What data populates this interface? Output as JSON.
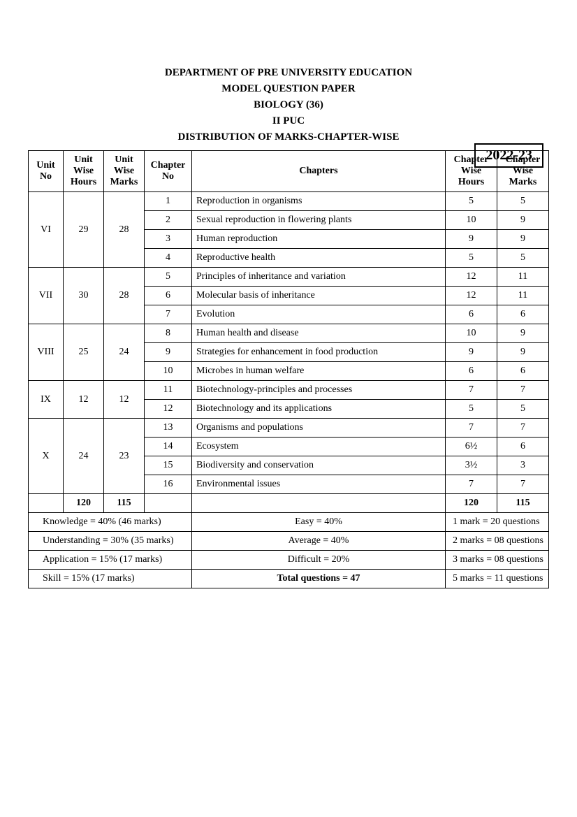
{
  "header": {
    "line1": "DEPARTMENT OF PRE UNIVERSITY EDUCATION",
    "line2": "MODEL QUESTION PAPER",
    "line3": "BIOLOGY (36)",
    "line4": "II PUC",
    "line5": "DISTRIBUTION OF MARKS-CHAPTER-WISE",
    "year": "2022-23"
  },
  "columns": {
    "unit_no": "Unit No",
    "unit_hours": "Unit Wise Hours",
    "unit_marks": "Unit Wise Marks",
    "chapter_no": "Chapter No",
    "chapters": "Chapters",
    "chapter_hours": "Chapter Wise Hours",
    "chapter_marks": "Chapter Wise Marks"
  },
  "units": [
    {
      "no": "VI",
      "hours": "29",
      "marks": "28",
      "chapters": [
        {
          "no": "1",
          "name": "Reproduction in organisms",
          "hours": "5",
          "marks": "5"
        },
        {
          "no": "2",
          "name": "Sexual reproduction in flowering plants",
          "hours": "10",
          "marks": "9"
        },
        {
          "no": "3",
          "name": "Human reproduction",
          "hours": "9",
          "marks": "9"
        },
        {
          "no": "4",
          "name": "Reproductive health",
          "hours": "5",
          "marks": "5"
        }
      ]
    },
    {
      "no": "VII",
      "hours": "30",
      "marks": "28",
      "chapters": [
        {
          "no": "5",
          "name": "Principles of inheritance and variation",
          "hours": "12",
          "marks": "11"
        },
        {
          "no": "6",
          "name": "Molecular basis of inheritance",
          "hours": "12",
          "marks": "11"
        },
        {
          "no": "7",
          "name": "Evolution",
          "hours": "6",
          "marks": "6"
        }
      ]
    },
    {
      "no": "VIII",
      "hours": "25",
      "marks": "24",
      "chapters": [
        {
          "no": "8",
          "name": "Human health and disease",
          "hours": "10",
          "marks": "9"
        },
        {
          "no": "9",
          "name": "Strategies for enhancement in food production",
          "hours": "9",
          "marks": "9"
        },
        {
          "no": "10",
          "name": "Microbes in human welfare",
          "hours": "6",
          "marks": "6"
        }
      ]
    },
    {
      "no": "IX",
      "hours": "12",
      "marks": "12",
      "chapters": [
        {
          "no": "11",
          "name": "Biotechnology-principles and processes",
          "hours": "7",
          "marks": "7"
        },
        {
          "no": "12",
          "name": "Biotechnology and its applications",
          "hours": "5",
          "marks": "5"
        }
      ]
    },
    {
      "no": "X",
      "hours": "24",
      "marks": "23",
      "chapters": [
        {
          "no": "13",
          "name": "Organisms and populations",
          "hours": "7",
          "marks": "7"
        },
        {
          "no": "14",
          "name": "Ecosystem",
          "hours": "6½",
          "marks": "6"
        },
        {
          "no": "15",
          "name": "Biodiversity and conservation",
          "hours": "3½",
          "marks": "3"
        },
        {
          "no": "16",
          "name": "Environmental issues",
          "hours": "7",
          "marks": "7"
        }
      ]
    }
  ],
  "totals": {
    "hours": "120",
    "marks": "115",
    "chapter_hours": "120",
    "chapter_marks": "115"
  },
  "footer": [
    {
      "left": "Knowledge = 40% (46 marks)",
      "mid": "Easy = 40%",
      "right": "1 mark   = 20 questions"
    },
    {
      "left": "Understanding = 30% (35 marks)",
      "mid": "Average = 40%",
      "right": "2 marks = 08 questions"
    },
    {
      "left": "Application = 15%  (17 marks)",
      "mid": "Difficult = 20%",
      "right": "3 marks = 08 questions"
    },
    {
      "left": "Skill = 15% (17 marks)",
      "mid_bold": "Total questions = 47",
      "right": "5 marks = 11 questions"
    }
  ],
  "layout": {
    "col_widths": [
      "50px",
      "55px",
      "55px",
      "65px",
      "auto",
      "70px",
      "70px"
    ]
  }
}
